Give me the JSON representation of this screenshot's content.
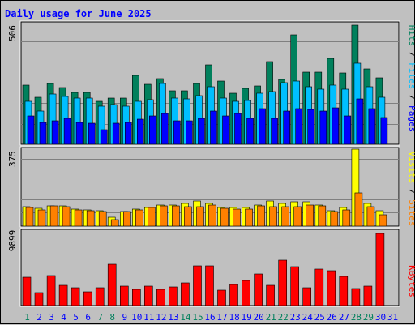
{
  "chart_data": {
    "type": "bar",
    "title": "Daily usage for June 2025",
    "categories": [
      "1",
      "2",
      "3",
      "4",
      "5",
      "6",
      "7",
      "8",
      "9",
      "10",
      "11",
      "12",
      "13",
      "14",
      "15",
      "16",
      "17",
      "18",
      "19",
      "20",
      "21",
      "22",
      "23",
      "24",
      "25",
      "26",
      "27",
      "28",
      "29",
      "30",
      "31"
    ],
    "weekend_days": [
      "1",
      "7",
      "8",
      "14",
      "15",
      "21",
      "22",
      "28",
      "29"
    ],
    "panels": [
      {
        "id": "top",
        "max_label": "506",
        "ylim": [
          0,
          506
        ],
        "grid": true,
        "axis_labels": [
          "Pages",
          "Files",
          "Hits"
        ],
        "series": [
          {
            "name": "Hits",
            "color": "#00805c",
            "values": [
              248,
              197,
              254,
              238,
              216,
              217,
              180,
              195,
              194,
              290,
              252,
              276,
              223,
              225,
              254,
              332,
              264,
              214,
              235,
              244,
              345,
              270,
              458,
              303,
              303,
              360,
              299,
              500,
              315,
              278,
              null
            ]
          },
          {
            "name": "Files",
            "color": "#00bfff",
            "values": [
              181,
              140,
              210,
              201,
              193,
              192,
              158,
              166,
              158,
              181,
              188,
              255,
              194,
              189,
              203,
              240,
              193,
              180,
              185,
              213,
              220,
              258,
              264,
              240,
              232,
              249,
              230,
              340,
              242,
              197,
              null
            ]
          },
          {
            "name": "Pages",
            "color": "#0000ff",
            "values": [
              120,
              90,
              100,
              110,
              92,
              88,
              62,
              88,
              90,
              104,
              120,
              130,
              100,
              100,
              110,
              140,
              120,
              130,
              110,
              150,
              110,
              140,
              150,
              145,
              140,
              152,
              120,
              190,
              150,
              112,
              null
            ]
          }
        ]
      },
      {
        "id": "middle",
        "max_label": "375",
        "ylim": [
          0,
          375
        ],
        "grid": true,
        "axis_labels": [
          "Sites",
          "Visits"
        ],
        "series": [
          {
            "name": "Visits",
            "color": "#ffff00",
            "values": [
              95,
              85,
              100,
              98,
              82,
              80,
              75,
              44,
              72,
              82,
              92,
              104,
              104,
              110,
              122,
              110,
              90,
              90,
              90,
              104,
              122,
              110,
              120,
              120,
              104,
              75,
              92,
              375,
              110,
              75,
              null
            ]
          },
          {
            "name": "Sites",
            "color": "#ff8000",
            "values": [
              90,
              80,
              100,
              93,
              77,
              75,
              70,
              33,
              70,
              80,
              90,
              100,
              98,
              96,
              96,
              103,
              88,
              84,
              84,
              97,
              96,
              96,
              94,
              104,
              100,
              70,
              79,
              162,
              96,
              57,
              null
            ]
          }
        ]
      },
      {
        "id": "bottom",
        "max_label": "9899",
        "ylim": [
          0,
          9899
        ],
        "grid": true,
        "axis_labels": [
          "KBytes"
        ],
        "series": [
          {
            "name": "KBytes",
            "color": "#ff0000",
            "values": [
              3800,
              1700,
              4000,
              2700,
              2400,
              1800,
              2400,
              5500,
              2600,
              2200,
              2600,
              2100,
              2500,
              3000,
              5300,
              5300,
              2000,
              2800,
              3300,
              4200,
              2700,
              6000,
              5200,
              2400,
              4800,
              4600,
              3900,
              2300,
              2600,
              9600,
              null
            ]
          }
        ]
      }
    ]
  },
  "colors": {
    "background": "#c0c0c0",
    "title": "#0000ff",
    "weekday_label": "#0000ff",
    "weekend_label": "#00805c",
    "gridline": "#808080"
  }
}
